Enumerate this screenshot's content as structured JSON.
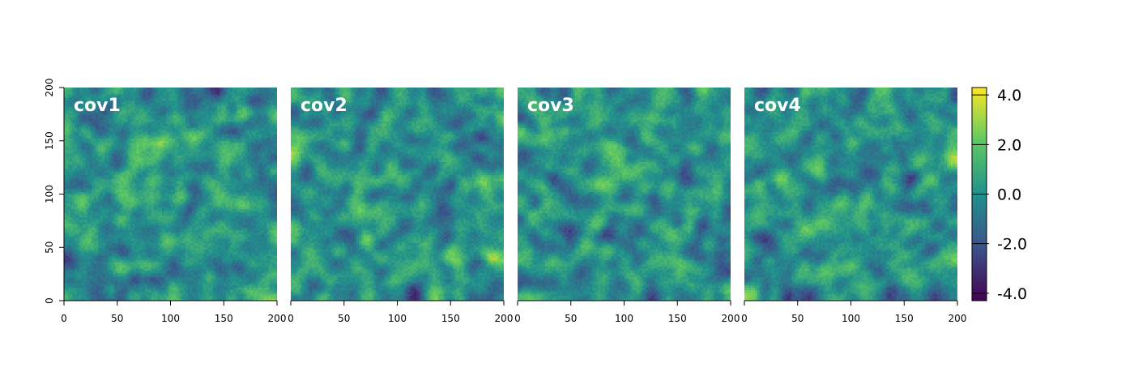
{
  "chart_data": {
    "type": "heatmap",
    "panels": [
      {
        "name": "cov1"
      },
      {
        "name": "cov2"
      },
      {
        "name": "cov3"
      },
      {
        "name": "cov4"
      }
    ],
    "x_ticks": [
      0,
      50,
      100,
      150,
      200
    ],
    "y_ticks": [
      0,
      50,
      100,
      150,
      200
    ],
    "xlim": [
      0,
      200
    ],
    "ylim": [
      0,
      200
    ],
    "y_axis_on_first_panel_only": true,
    "colorbar": {
      "ticks": [
        4.0,
        2.0,
        0.0,
        -2.0,
        -4.0
      ],
      "tick_labels": [
        "4.0",
        "2.0",
        "0.0",
        "-2.0",
        "-4.0"
      ],
      "range": [
        -4.3,
        4.3
      ],
      "colormap": "viridis",
      "colors": [
        "#440154",
        "#3b528b",
        "#21918c",
        "#5ec962",
        "#fde725"
      ]
    },
    "grid": false,
    "legend_position": "right"
  }
}
